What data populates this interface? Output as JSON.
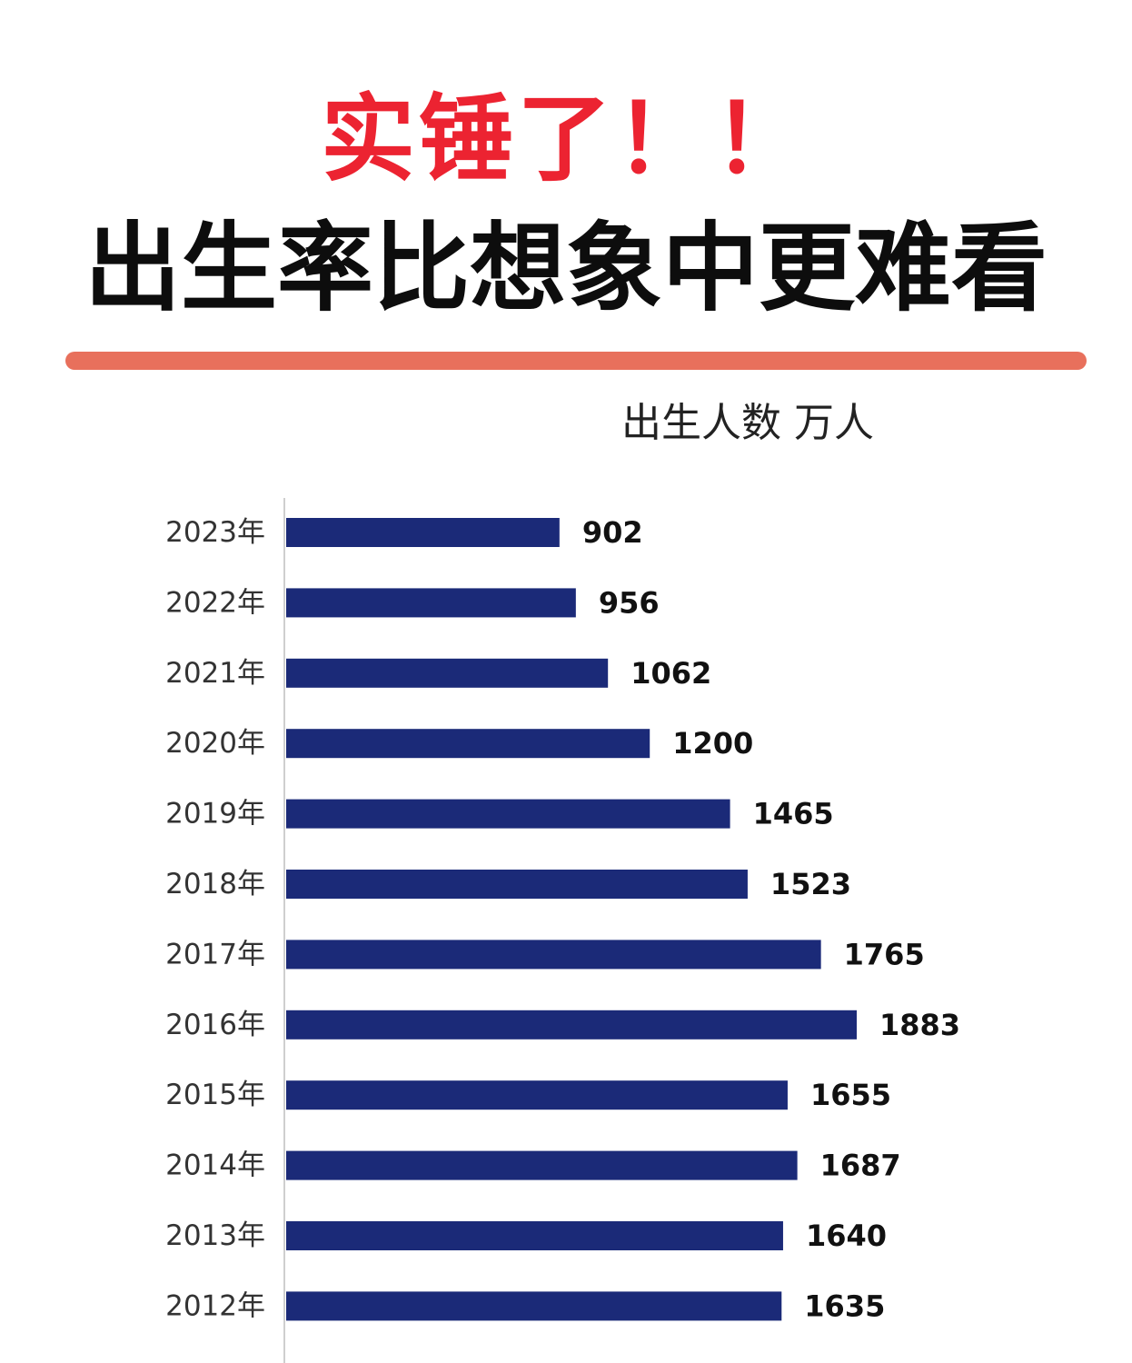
{
  "header": {
    "headline": "实锤了！！",
    "subheadline": "出生率比想象中更难看"
  },
  "colors": {
    "headline": "#ec2331",
    "divider": "#e8705c",
    "bar": "#1b2a78"
  },
  "chart_data": {
    "type": "bar",
    "orientation": "horizontal",
    "unit_label": "出生人数 万人",
    "categories": [
      "2023年",
      "2022年",
      "2021年",
      "2020年",
      "2019年",
      "2018年",
      "2017年",
      "2016年",
      "2015年",
      "2014年",
      "2013年",
      "2012年"
    ],
    "values": [
      902,
      956,
      1062,
      1200,
      1465,
      1523,
      1765,
      1883,
      1655,
      1687,
      1640,
      1635
    ],
    "data_labels": [
      "902",
      "956",
      "1062",
      "1200",
      "1465",
      "1523",
      "1765",
      "1883",
      "1655",
      "1687",
      "1640",
      "1635"
    ],
    "xlim": [
      0,
      1883
    ],
    "grid": false,
    "legend": "none"
  }
}
